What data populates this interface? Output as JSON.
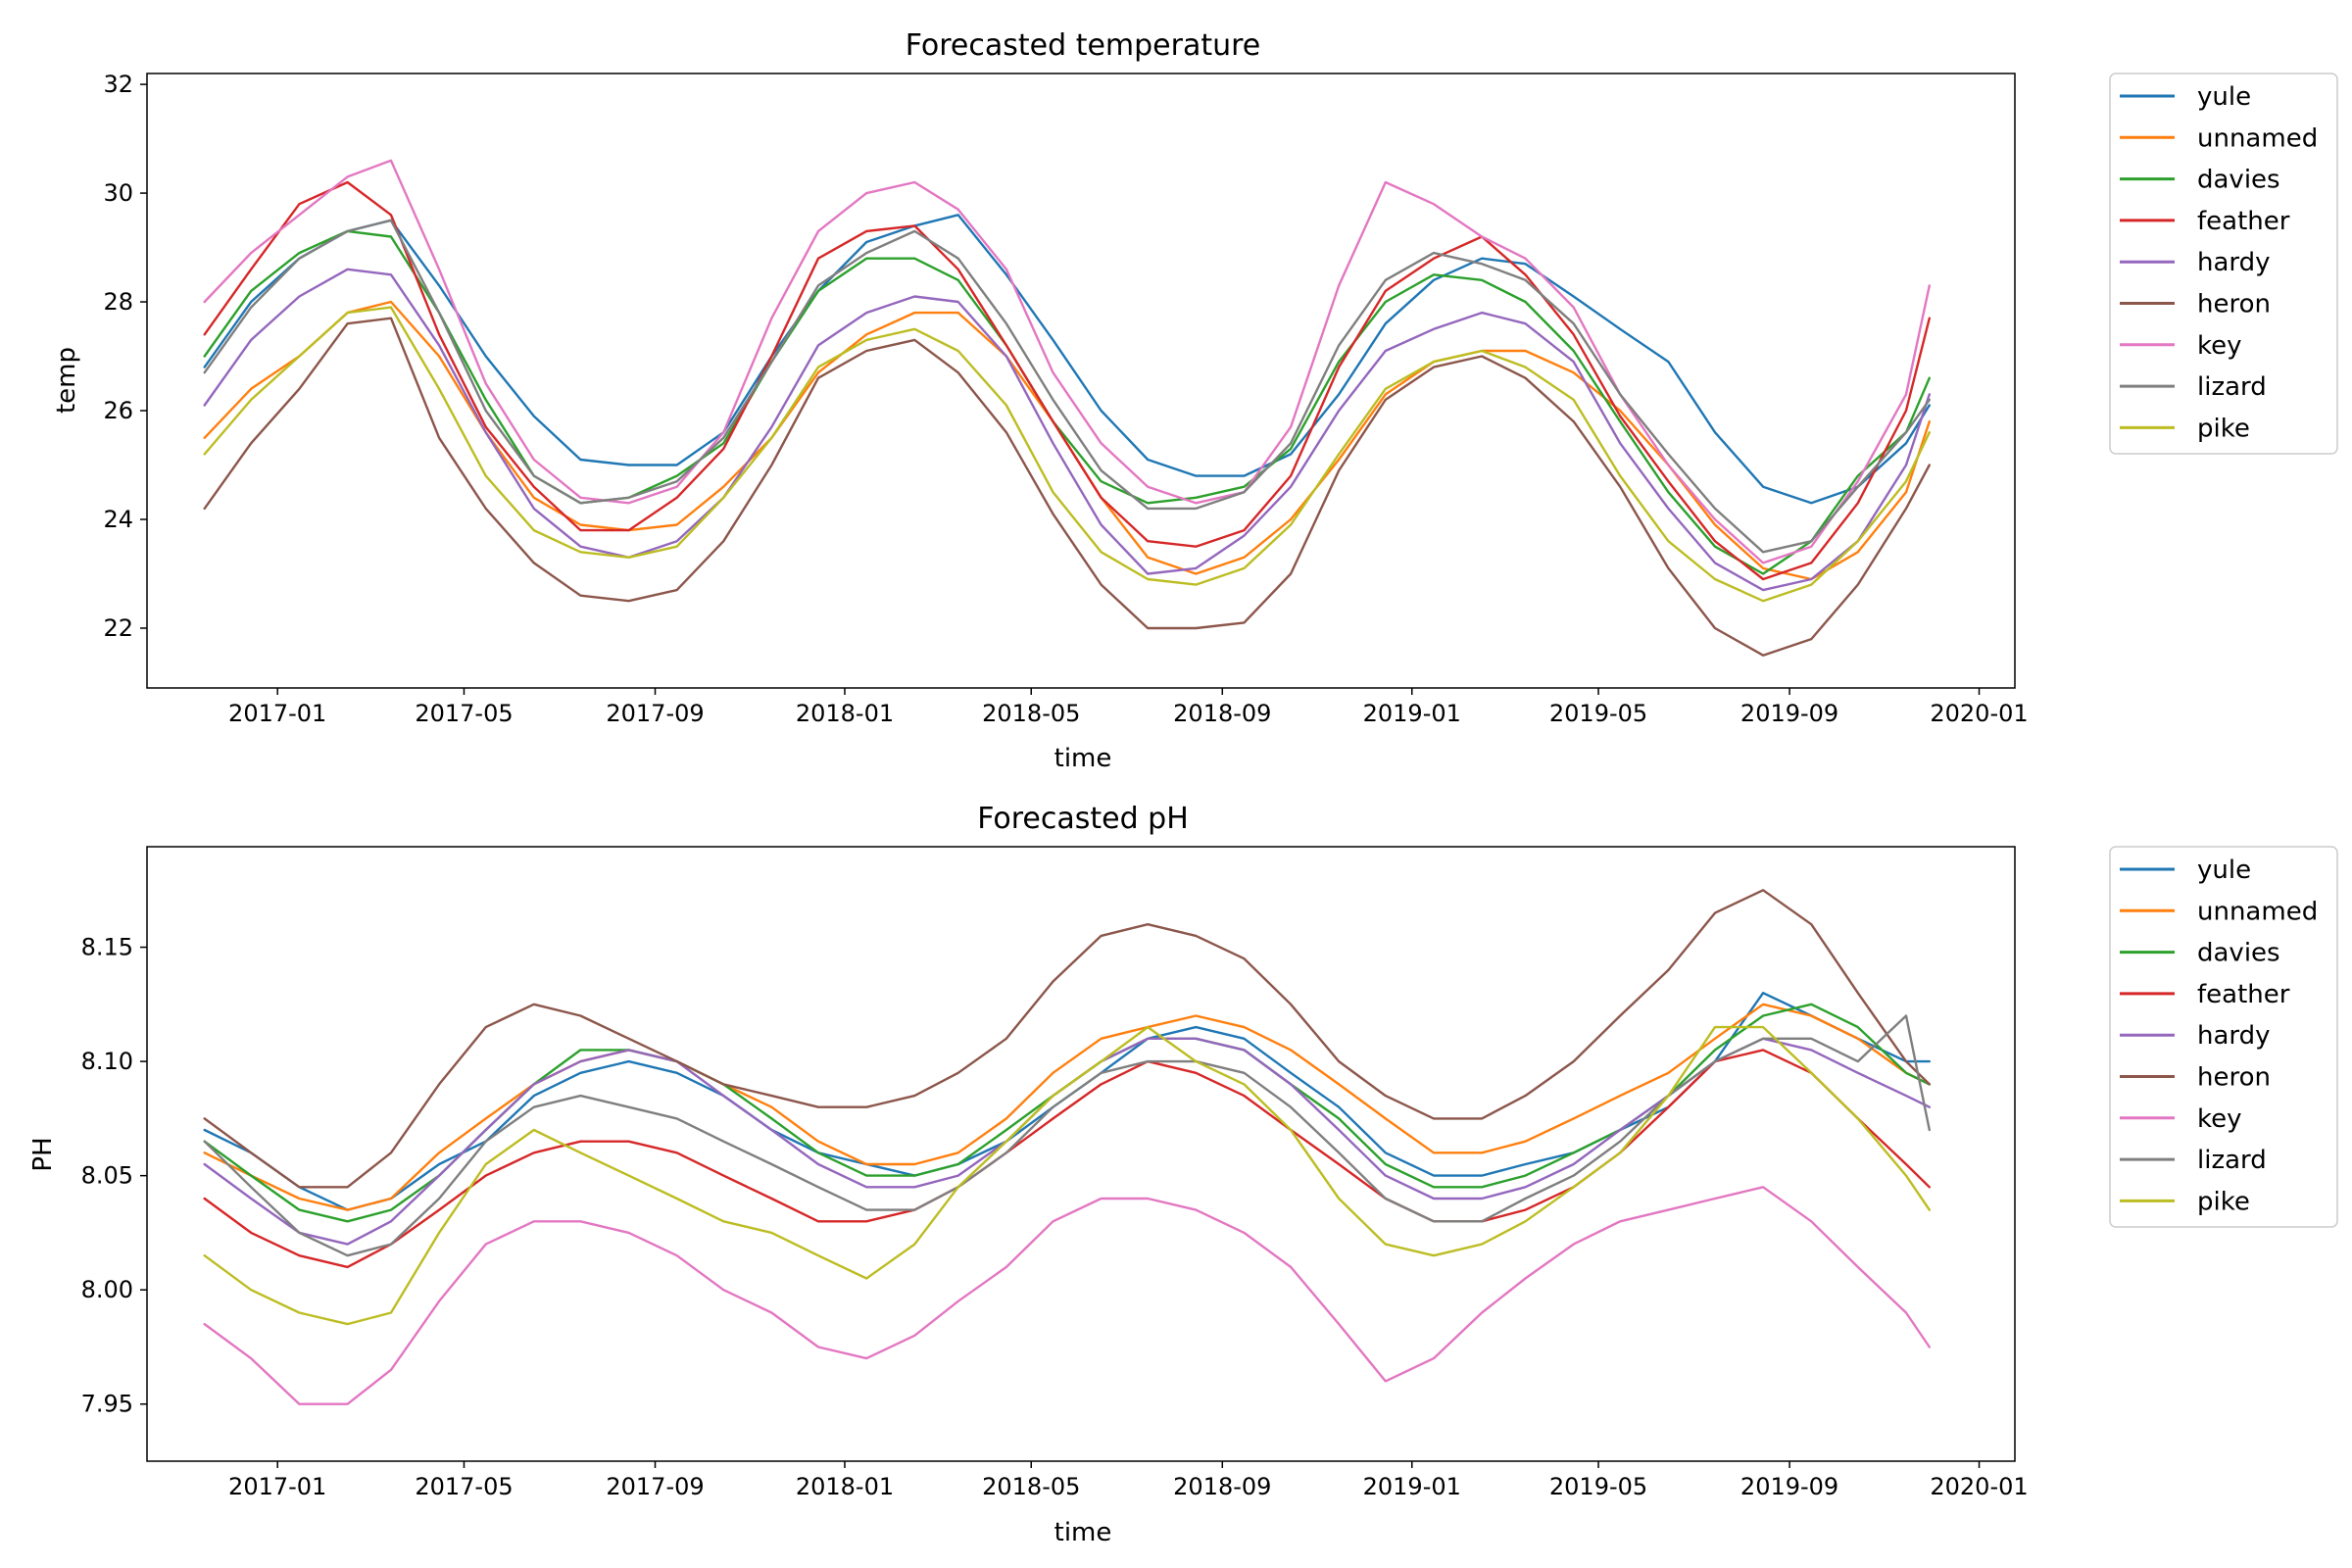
{
  "colors": {
    "yule": "#1f77b4",
    "unnamed": "#ff7f0e",
    "davies": "#2ca02c",
    "feather": "#d62728",
    "hardy": "#9467bd",
    "heron": "#8c564b",
    "key": "#e377c2",
    "lizard": "#7f7f7f",
    "pike": "#bcbd22"
  },
  "chart_data": [
    {
      "type": "line",
      "title": "Forecasted temperature",
      "xlabel": "time",
      "ylabel": "temp",
      "xlim": [
        "2016-10-09",
        "2020-01-24"
      ],
      "ylim": [
        20.9,
        32.2
      ],
      "xticks": [
        "2017-01",
        "2017-05",
        "2017-09",
        "2018-01",
        "2018-05",
        "2018-09",
        "2019-01",
        "2019-05",
        "2019-09",
        "2020-01"
      ],
      "yticks": [
        22,
        24,
        26,
        28,
        30,
        32
      ],
      "grid": false,
      "legend": "outside-right",
      "x": [
        "2016-11-15",
        "2016-12-15",
        "2017-01-15",
        "2017-02-15",
        "2017-03-15",
        "2017-04-15",
        "2017-05-15",
        "2017-06-15",
        "2017-07-15",
        "2017-08-15",
        "2017-09-15",
        "2017-10-15",
        "2017-11-15",
        "2017-12-15",
        "2018-01-15",
        "2018-02-15",
        "2018-03-15",
        "2018-04-15",
        "2018-05-15",
        "2018-06-15",
        "2018-07-15",
        "2018-08-15",
        "2018-09-15",
        "2018-10-15",
        "2018-11-15",
        "2018-12-15",
        "2019-01-15",
        "2019-02-15",
        "2019-03-15",
        "2019-04-15",
        "2019-05-15",
        "2019-06-15",
        "2019-07-15",
        "2019-08-15",
        "2019-09-15",
        "2019-10-15",
        "2019-11-15",
        "2019-11-30"
      ],
      "series": [
        {
          "name": "yule",
          "values": [
            26.8,
            28.0,
            28.8,
            29.3,
            29.5,
            28.3,
            27.0,
            25.9,
            25.1,
            25.0,
            25.0,
            25.6,
            27.0,
            28.2,
            29.1,
            29.4,
            29.6,
            28.5,
            27.3,
            26.0,
            25.1,
            24.8,
            24.8,
            25.2,
            26.3,
            27.6,
            28.4,
            28.8,
            28.7,
            28.1,
            27.5,
            26.9,
            25.6,
            24.6,
            24.3,
            24.6,
            25.4,
            26.1
          ]
        },
        {
          "name": "unnamed",
          "values": [
            25.5,
            26.4,
            27.0,
            27.8,
            28.0,
            27.0,
            25.6,
            24.4,
            23.9,
            23.8,
            23.9,
            24.6,
            25.5,
            26.7,
            27.4,
            27.8,
            27.8,
            27.0,
            25.8,
            24.4,
            23.3,
            23.0,
            23.3,
            24.0,
            25.1,
            26.3,
            26.9,
            27.1,
            27.1,
            26.7,
            26.0,
            25.0,
            23.9,
            23.1,
            22.9,
            23.4,
            24.5,
            25.8
          ]
        },
        {
          "name": "davies",
          "values": [
            27.0,
            28.2,
            28.9,
            29.3,
            29.2,
            27.8,
            26.2,
            24.8,
            24.3,
            24.4,
            24.8,
            25.4,
            26.9,
            28.2,
            28.8,
            28.8,
            28.4,
            27.2,
            25.8,
            24.7,
            24.3,
            24.4,
            24.6,
            25.3,
            26.9,
            28.0,
            28.5,
            28.4,
            28.0,
            27.1,
            25.8,
            24.5,
            23.5,
            23.0,
            23.6,
            24.8,
            25.6,
            26.6
          ]
        },
        {
          "name": "feather",
          "values": [
            27.4,
            28.6,
            29.8,
            30.2,
            29.6,
            27.4,
            25.7,
            24.6,
            23.8,
            23.8,
            24.4,
            25.3,
            27.0,
            28.8,
            29.3,
            29.4,
            28.6,
            27.2,
            25.8,
            24.4,
            23.6,
            23.5,
            23.8,
            24.8,
            26.8,
            28.2,
            28.8,
            29.2,
            28.5,
            27.4,
            25.9,
            24.7,
            23.6,
            22.9,
            23.2,
            24.3,
            26.0,
            27.7
          ]
        },
        {
          "name": "hardy",
          "values": [
            26.1,
            27.3,
            28.1,
            28.6,
            28.5,
            27.2,
            25.6,
            24.2,
            23.5,
            23.3,
            23.6,
            24.4,
            25.7,
            27.2,
            27.8,
            28.1,
            28.0,
            27.0,
            25.4,
            23.9,
            23.0,
            23.1,
            23.7,
            24.6,
            26.0,
            27.1,
            27.5,
            27.8,
            27.6,
            26.9,
            25.4,
            24.2,
            23.2,
            22.7,
            22.9,
            23.6,
            25.0,
            26.3
          ]
        },
        {
          "name": "heron",
          "values": [
            24.2,
            25.4,
            26.4,
            27.6,
            27.7,
            25.5,
            24.2,
            23.2,
            22.6,
            22.5,
            22.7,
            23.6,
            25.0,
            26.6,
            27.1,
            27.3,
            26.7,
            25.6,
            24.1,
            22.8,
            22.0,
            22.0,
            22.1,
            23.0,
            24.9,
            26.2,
            26.8,
            27.0,
            26.6,
            25.8,
            24.6,
            23.1,
            22.0,
            21.5,
            21.8,
            22.8,
            24.2,
            25.0
          ]
        },
        {
          "name": "key",
          "values": [
            28.0,
            28.9,
            29.6,
            30.3,
            30.6,
            28.6,
            26.5,
            25.1,
            24.4,
            24.3,
            24.6,
            25.6,
            27.7,
            29.3,
            30.0,
            30.2,
            29.7,
            28.6,
            26.7,
            25.4,
            24.6,
            24.3,
            24.5,
            25.7,
            28.3,
            30.2,
            29.8,
            29.2,
            28.8,
            27.9,
            26.3,
            25.0,
            24.0,
            23.2,
            23.5,
            24.7,
            26.3,
            28.3
          ]
        },
        {
          "name": "lizard",
          "values": [
            26.7,
            27.9,
            28.8,
            29.3,
            29.5,
            27.8,
            26.0,
            24.8,
            24.3,
            24.4,
            24.7,
            25.5,
            26.9,
            28.3,
            28.9,
            29.3,
            28.8,
            27.6,
            26.2,
            24.9,
            24.2,
            24.2,
            24.5,
            25.4,
            27.2,
            28.4,
            28.9,
            28.7,
            28.4,
            27.6,
            26.3,
            25.2,
            24.2,
            23.4,
            23.6,
            24.6,
            25.6,
            26.2
          ]
        },
        {
          "name": "pike",
          "values": [
            25.2,
            26.2,
            27.0,
            27.8,
            27.9,
            26.4,
            24.8,
            23.8,
            23.4,
            23.3,
            23.5,
            24.4,
            25.5,
            26.8,
            27.3,
            27.5,
            27.1,
            26.1,
            24.5,
            23.4,
            22.9,
            22.8,
            23.1,
            23.9,
            25.2,
            26.4,
            26.9,
            27.1,
            26.8,
            26.2,
            24.8,
            23.6,
            22.9,
            22.5,
            22.8,
            23.6,
            24.7,
            25.6
          ]
        }
      ]
    },
    {
      "type": "line",
      "title": "Forecasted pH",
      "xlabel": "time",
      "ylabel": "PH",
      "xlim": [
        "2016-10-09",
        "2020-01-24"
      ],
      "ylim": [
        7.925,
        8.194
      ],
      "xticks": [
        "2017-01",
        "2017-05",
        "2017-09",
        "2018-01",
        "2018-05",
        "2018-09",
        "2019-01",
        "2019-05",
        "2019-09",
        "2020-01"
      ],
      "yticks": [
        7.95,
        8.0,
        8.05,
        8.1,
        8.15
      ],
      "grid": false,
      "legend": "outside-right",
      "x": [
        "2016-11-15",
        "2016-12-15",
        "2017-01-15",
        "2017-02-15",
        "2017-03-15",
        "2017-04-15",
        "2017-05-15",
        "2017-06-15",
        "2017-07-15",
        "2017-08-15",
        "2017-09-15",
        "2017-10-15",
        "2017-11-15",
        "2017-12-15",
        "2018-01-15",
        "2018-02-15",
        "2018-03-15",
        "2018-04-15",
        "2018-05-15",
        "2018-06-15",
        "2018-07-15",
        "2018-08-15",
        "2018-09-15",
        "2018-10-15",
        "2018-11-15",
        "2018-12-15",
        "2019-01-15",
        "2019-02-15",
        "2019-03-15",
        "2019-04-15",
        "2019-05-15",
        "2019-06-15",
        "2019-07-15",
        "2019-08-15",
        "2019-09-15",
        "2019-10-15",
        "2019-11-15",
        "2019-11-30"
      ],
      "series": [
        {
          "name": "yule",
          "values": [
            8.07,
            8.06,
            8.045,
            8.035,
            8.04,
            8.055,
            8.065,
            8.085,
            8.095,
            8.1,
            8.095,
            8.085,
            8.07,
            8.06,
            8.055,
            8.05,
            8.055,
            8.065,
            8.08,
            8.095,
            8.11,
            8.115,
            8.11,
            8.095,
            8.08,
            8.06,
            8.05,
            8.05,
            8.055,
            8.06,
            8.07,
            8.08,
            8.1,
            8.13,
            8.12,
            8.11,
            8.1,
            8.1
          ]
        },
        {
          "name": "unnamed",
          "values": [
            8.06,
            8.05,
            8.04,
            8.035,
            8.04,
            8.06,
            8.075,
            8.09,
            8.1,
            8.105,
            8.1,
            8.09,
            8.08,
            8.065,
            8.055,
            8.055,
            8.06,
            8.075,
            8.095,
            8.11,
            8.115,
            8.12,
            8.115,
            8.105,
            8.09,
            8.075,
            8.06,
            8.06,
            8.065,
            8.075,
            8.085,
            8.095,
            8.11,
            8.125,
            8.12,
            8.11,
            8.095,
            8.09
          ]
        },
        {
          "name": "davies",
          "values": [
            8.065,
            8.05,
            8.035,
            8.03,
            8.035,
            8.05,
            8.07,
            8.09,
            8.105,
            8.105,
            8.1,
            8.09,
            8.075,
            8.06,
            8.05,
            8.05,
            8.055,
            8.07,
            8.085,
            8.1,
            8.11,
            8.11,
            8.105,
            8.09,
            8.075,
            8.055,
            8.045,
            8.045,
            8.05,
            8.06,
            8.07,
            8.085,
            8.105,
            8.12,
            8.125,
            8.115,
            8.095,
            8.09
          ]
        },
        {
          "name": "feather",
          "values": [
            8.04,
            8.025,
            8.015,
            8.01,
            8.02,
            8.035,
            8.05,
            8.06,
            8.065,
            8.065,
            8.06,
            8.05,
            8.04,
            8.03,
            8.03,
            8.035,
            8.045,
            8.06,
            8.075,
            8.09,
            8.1,
            8.095,
            8.085,
            8.07,
            8.055,
            8.04,
            8.03,
            8.03,
            8.035,
            8.045,
            8.06,
            8.08,
            8.1,
            8.105,
            8.095,
            8.075,
            8.055,
            8.045
          ]
        },
        {
          "name": "hardy",
          "values": [
            8.055,
            8.04,
            8.025,
            8.02,
            8.03,
            8.05,
            8.07,
            8.09,
            8.1,
            8.105,
            8.1,
            8.085,
            8.07,
            8.055,
            8.045,
            8.045,
            8.05,
            8.065,
            8.085,
            8.1,
            8.11,
            8.11,
            8.105,
            8.09,
            8.07,
            8.05,
            8.04,
            8.04,
            8.045,
            8.055,
            8.07,
            8.085,
            8.1,
            8.11,
            8.105,
            8.095,
            8.085,
            8.08
          ]
        },
        {
          "name": "heron",
          "values": [
            8.075,
            8.06,
            8.045,
            8.045,
            8.06,
            8.09,
            8.115,
            8.125,
            8.12,
            8.11,
            8.1,
            8.09,
            8.085,
            8.08,
            8.08,
            8.085,
            8.095,
            8.11,
            8.135,
            8.155,
            8.16,
            8.155,
            8.145,
            8.125,
            8.1,
            8.085,
            8.075,
            8.075,
            8.085,
            8.1,
            8.12,
            8.14,
            8.165,
            8.175,
            8.16,
            8.13,
            8.1,
            8.09
          ]
        },
        {
          "name": "key",
          "values": [
            7.985,
            7.97,
            7.95,
            7.95,
            7.965,
            7.995,
            8.02,
            8.03,
            8.03,
            8.025,
            8.015,
            8.0,
            7.99,
            7.975,
            7.97,
            7.98,
            7.995,
            8.01,
            8.03,
            8.04,
            8.04,
            8.035,
            8.025,
            8.01,
            7.985,
            7.96,
            7.97,
            7.99,
            8.005,
            8.02,
            8.03,
            8.035,
            8.04,
            8.045,
            8.03,
            8.01,
            7.99,
            7.975
          ]
        },
        {
          "name": "lizard",
          "values": [
            8.065,
            8.045,
            8.025,
            8.015,
            8.02,
            8.04,
            8.065,
            8.08,
            8.085,
            8.08,
            8.075,
            8.065,
            8.055,
            8.045,
            8.035,
            8.035,
            8.045,
            8.06,
            8.08,
            8.095,
            8.1,
            8.1,
            8.095,
            8.08,
            8.06,
            8.04,
            8.03,
            8.03,
            8.04,
            8.05,
            8.065,
            8.085,
            8.1,
            8.11,
            8.11,
            8.1,
            8.12,
            8.07
          ]
        },
        {
          "name": "pike",
          "values": [
            8.015,
            8.0,
            7.99,
            7.985,
            7.99,
            8.025,
            8.055,
            8.07,
            8.06,
            8.05,
            8.04,
            8.03,
            8.025,
            8.015,
            8.005,
            8.02,
            8.045,
            8.065,
            8.085,
            8.1,
            8.115,
            8.1,
            8.09,
            8.07,
            8.04,
            8.02,
            8.015,
            8.02,
            8.03,
            8.045,
            8.06,
            8.085,
            8.115,
            8.115,
            8.095,
            8.075,
            8.05,
            8.035
          ]
        }
      ]
    }
  ]
}
